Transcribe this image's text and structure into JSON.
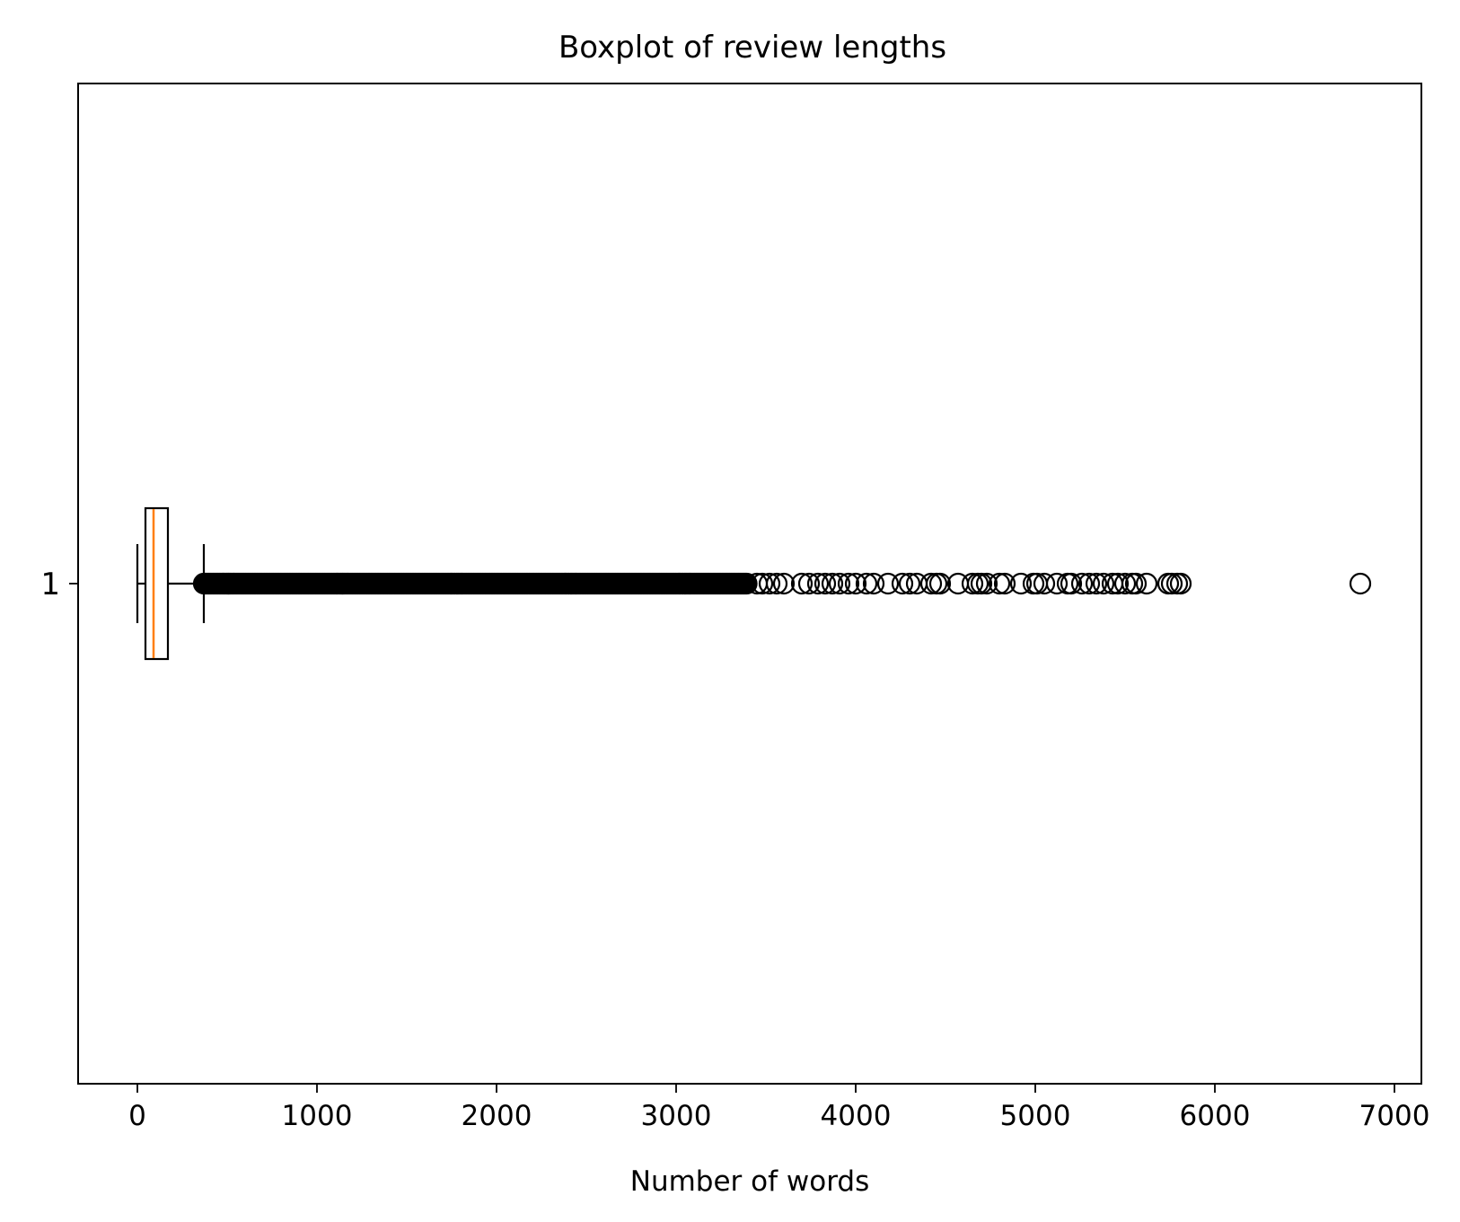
{
  "chart_data": {
    "type": "boxplot",
    "orientation": "horizontal",
    "title": "Boxplot of review lengths",
    "xlabel": "Number of words",
    "ylabel": "",
    "xlim": [
      -330,
      7150
    ],
    "xticks": [
      0,
      1000,
      2000,
      3000,
      4000,
      5000,
      6000,
      7000
    ],
    "categories": [
      "1"
    ],
    "grid": false,
    "series": [
      {
        "whisker_low": 0,
        "q1": 45,
        "median": 90,
        "q3": 170,
        "whisker_high": 370,
        "dense_outlier_range": [
          370,
          3400
        ],
        "outliers": [
          3450,
          3480,
          3520,
          3560,
          3600,
          3700,
          3740,
          3790,
          3830,
          3870,
          3910,
          3960,
          4000,
          4060,
          4100,
          4180,
          4260,
          4300,
          4340,
          4420,
          4450,
          4470,
          4570,
          4650,
          4680,
          4700,
          4730,
          4800,
          4830,
          4920,
          4990,
          5010,
          5050,
          5120,
          5180,
          5200,
          5260,
          5300,
          5340,
          5380,
          5430,
          5460,
          5500,
          5540,
          5560,
          5620,
          5740,
          5760,
          5790,
          5810,
          6810
        ]
      }
    ],
    "colors": {
      "median": "#ff7f0e",
      "box": "#000000",
      "flier": "#000000"
    }
  }
}
